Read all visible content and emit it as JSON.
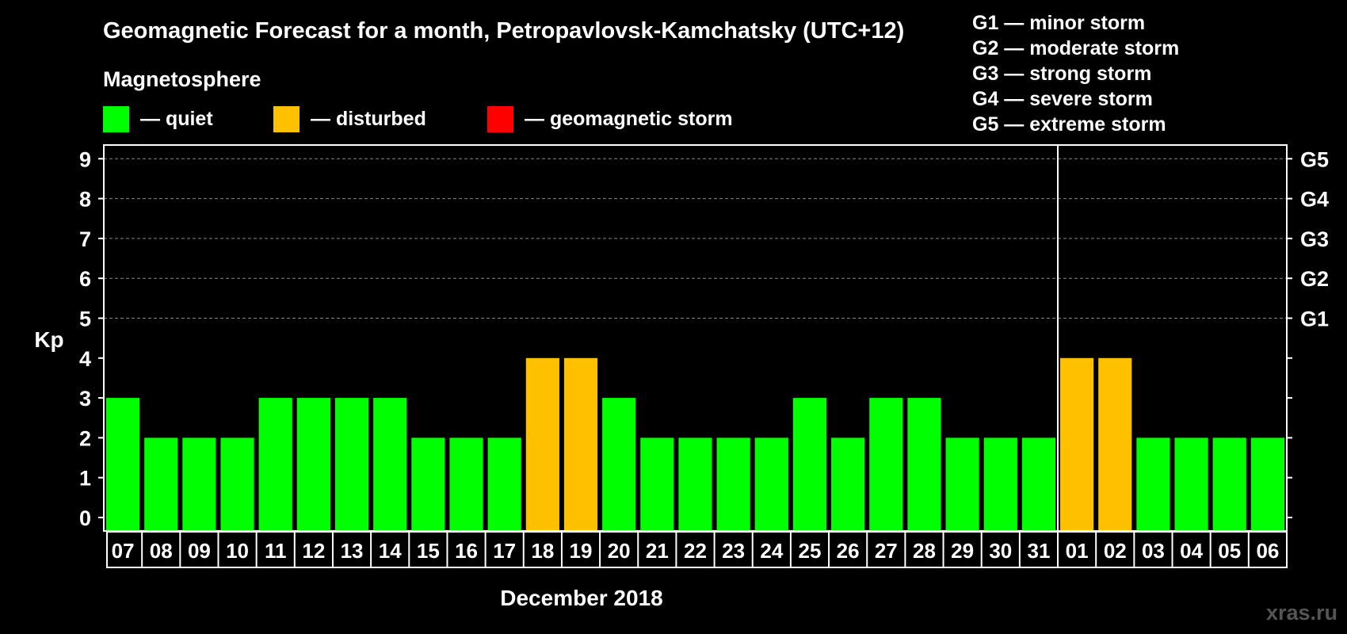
{
  "colors": {
    "background": "#000000",
    "quiet": "#00ff00",
    "disturbed": "#ffc000",
    "storm": "#ff0000",
    "grid": "#888888",
    "axis": "#ffffff"
  },
  "watermark": "xras.ru",
  "legend": {
    "title": "Magnetosphere",
    "items": [
      {
        "key": "quiet",
        "label": "— quiet"
      },
      {
        "key": "disturbed",
        "label": "— disturbed"
      },
      {
        "key": "storm",
        "label": "— geomagnetic storm"
      }
    ]
  },
  "g_scale": [
    "G1 — minor storm",
    "G2 — moderate storm",
    "G3 — strong storm",
    "G4 — severe storm",
    "G5 — extreme storm"
  ],
  "chart_data": {
    "type": "bar",
    "title": "Geomagnetic Forecast for a month, Petropavlovsk-Kamchatsky (UTC+12)",
    "xlabel": "December 2018",
    "ylabel": "Kp",
    "ylim": [
      0,
      9
    ],
    "yticks": [
      0,
      1,
      2,
      3,
      4,
      5,
      6,
      7,
      8,
      9
    ],
    "right_ticks": [
      {
        "kp": 5,
        "label": "G1"
      },
      {
        "kp": 6,
        "label": "G2"
      },
      {
        "kp": 7,
        "label": "G3"
      },
      {
        "kp": 8,
        "label": "G4"
      },
      {
        "kp": 9,
        "label": "G5"
      }
    ],
    "grid_lines": [
      5,
      6,
      7,
      8,
      9
    ],
    "month_divider_after_index": 24,
    "categories": [
      "07",
      "08",
      "09",
      "10",
      "11",
      "12",
      "13",
      "14",
      "15",
      "16",
      "17",
      "18",
      "19",
      "20",
      "21",
      "22",
      "23",
      "24",
      "25",
      "26",
      "27",
      "28",
      "29",
      "30",
      "31",
      "01",
      "02",
      "03",
      "04",
      "05",
      "06"
    ],
    "values": [
      3,
      2,
      2,
      2,
      3,
      3,
      3,
      3,
      2,
      2,
      2,
      4,
      4,
      3,
      2,
      2,
      2,
      2,
      3,
      2,
      3,
      3,
      2,
      2,
      2,
      4,
      4,
      2,
      2,
      2,
      2
    ],
    "status": [
      "quiet",
      "quiet",
      "quiet",
      "quiet",
      "quiet",
      "quiet",
      "quiet",
      "quiet",
      "quiet",
      "quiet",
      "quiet",
      "disturbed",
      "disturbed",
      "quiet",
      "quiet",
      "quiet",
      "quiet",
      "quiet",
      "quiet",
      "quiet",
      "quiet",
      "quiet",
      "quiet",
      "quiet",
      "quiet",
      "disturbed",
      "disturbed",
      "quiet",
      "quiet",
      "quiet",
      "quiet"
    ]
  }
}
